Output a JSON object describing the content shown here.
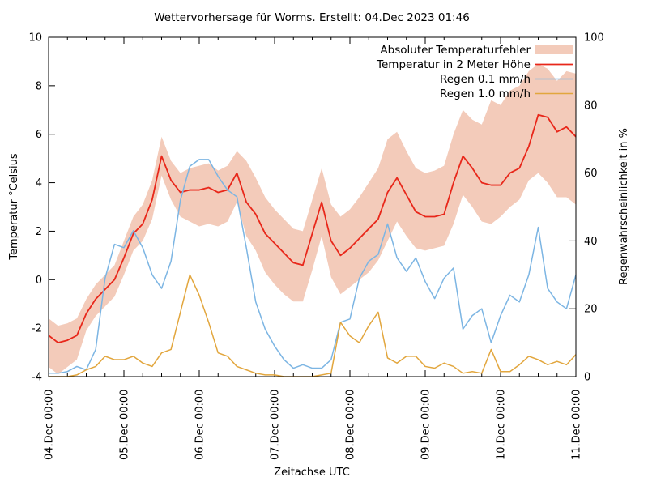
{
  "page": {
    "background": "#ffffff"
  },
  "chart_data": {
    "type": "line",
    "title": "Wettervorhersage für Worms. Erstellt: 04.Dec 2023 01:46",
    "xlabel": "Zeitachse UTC",
    "ylabel_left": "Temperatur °Celsius",
    "ylabel_right": "Regenwahrscheinlichkeit in %",
    "grid": "off",
    "legend_position": "top-right-inside",
    "y_left": {
      "min": -4,
      "max": 10,
      "ticks": [
        -4,
        -2,
        0,
        2,
        4,
        6,
        8,
        10
      ]
    },
    "y_right": {
      "min": 0,
      "max": 100,
      "ticks": [
        0,
        20,
        40,
        60,
        80,
        100
      ]
    },
    "x_axis": {
      "min_hours": 0,
      "max_hours": 168,
      "major_tick_hours": [
        0,
        24,
        48,
        72,
        96,
        120,
        144,
        168
      ],
      "major_tick_labels": [
        "04.Dec 00:00",
        "05.Dec 00:00",
        "06.Dec 00:00",
        "07.Dec 00:00",
        "08.Dec 00:00",
        "09.Dec 00:00",
        "10.Dec 00:00",
        "11.Dec 00:00"
      ],
      "minor_tick_step_hours": 6
    },
    "hours": [
      0,
      3,
      6,
      9,
      12,
      15,
      18,
      21,
      24,
      27,
      30,
      33,
      36,
      39,
      42,
      45,
      48,
      51,
      54,
      57,
      60,
      63,
      66,
      69,
      72,
      75,
      78,
      81,
      84,
      87,
      90,
      93,
      96,
      99,
      102,
      105,
      108,
      111,
      114,
      117,
      120,
      123,
      126,
      129,
      132,
      135,
      138,
      141,
      144,
      147,
      150,
      153,
      156,
      159,
      162,
      165,
      168
    ],
    "series": [
      {
        "name": "Absoluter Temperaturfehler",
        "type": "band",
        "axis": "left",
        "color": "#f3cbba",
        "upper": [
          -1.6,
          -1.9,
          -1.8,
          -1.6,
          -0.8,
          -0.2,
          0.2,
          0.6,
          1.6,
          2.6,
          3.1,
          4.1,
          5.9,
          4.9,
          4.4,
          4.6,
          4.7,
          4.8,
          4.5,
          4.7,
          5.3,
          4.9,
          4.2,
          3.4,
          2.9,
          2.5,
          2.1,
          2.0,
          3.3,
          4.6,
          3.1,
          2.6,
          2.9,
          3.4,
          4.0,
          4.6,
          5.8,
          6.1,
          5.3,
          4.6,
          4.4,
          4.5,
          4.7,
          6.0,
          7.0,
          6.6,
          6.4,
          7.4,
          7.2,
          7.8,
          8.0,
          8.6,
          8.9,
          8.7,
          8.2,
          8.6,
          8.5
        ],
        "lower": [
          -3.6,
          -3.9,
          -3.6,
          -3.3,
          -2.1,
          -1.5,
          -1.1,
          -0.7,
          0.2,
          1.2,
          1.6,
          2.5,
          4.3,
          3.3,
          2.6,
          2.4,
          2.2,
          2.3,
          2.2,
          2.4,
          3.2,
          1.8,
          1.2,
          0.3,
          -0.2,
          -0.6,
          -0.9,
          -0.9,
          0.4,
          1.8,
          0.1,
          -0.6,
          -0.3,
          0.0,
          0.3,
          0.8,
          1.6,
          2.4,
          1.8,
          1.3,
          1.2,
          1.3,
          1.4,
          2.3,
          3.5,
          3.0,
          2.4,
          2.3,
          2.6,
          3.0,
          3.3,
          4.1,
          4.4,
          4.0,
          3.4,
          3.4,
          3.1
        ]
      },
      {
        "name": "Temperatur in 2 Meter Höhe",
        "type": "line",
        "axis": "left",
        "color": "#e8271a",
        "values": [
          -2.3,
          -2.6,
          -2.5,
          -2.3,
          -1.4,
          -0.8,
          -0.4,
          0.0,
          0.9,
          1.9,
          2.3,
          3.3,
          5.1,
          4.1,
          3.6,
          3.7,
          3.7,
          3.8,
          3.6,
          3.7,
          4.4,
          3.2,
          2.7,
          1.9,
          1.5,
          1.1,
          0.7,
          0.6,
          1.9,
          3.2,
          1.6,
          1.0,
          1.3,
          1.7,
          2.1,
          2.5,
          3.6,
          4.2,
          3.5,
          2.8,
          2.6,
          2.6,
          2.7,
          4.0,
          5.1,
          4.6,
          4.0,
          3.9,
          3.9,
          4.4,
          4.6,
          5.5,
          6.8,
          6.7,
          6.1,
          6.3,
          5.9
        ]
      },
      {
        "name": "Regen 0.1 mm/h",
        "type": "line",
        "axis": "right",
        "color": "#7cb5e3",
        "values": [
          1,
          1,
          1.5,
          3,
          2,
          8,
          29,
          39,
          38,
          43,
          38,
          30,
          26,
          34,
          52,
          62,
          64,
          64,
          59,
          55,
          53,
          38,
          22,
          14,
          9,
          5,
          2.5,
          3.5,
          2.5,
          2.5,
          5,
          16,
          17,
          29,
          34,
          36,
          45,
          35,
          31,
          35,
          28,
          23,
          29,
          32,
          14,
          18,
          20,
          10,
          18,
          24,
          22,
          30,
          44,
          26,
          22,
          20,
          30
        ]
      },
      {
        "name": "Regen 1.0 mm/h",
        "type": "line",
        "axis": "right",
        "color": "#e2a63d",
        "values": [
          0,
          0,
          0,
          0.5,
          2,
          3,
          6,
          5,
          5,
          6,
          4,
          3,
          7,
          8,
          19,
          30,
          24,
          16,
          7,
          6,
          3,
          2,
          1,
          0.5,
          0.5,
          0,
          0,
          0,
          0,
          0.5,
          1,
          16,
          12,
          10,
          15,
          19,
          5.5,
          4,
          6,
          6,
          3,
          2.5,
          4,
          3,
          1,
          1.5,
          1,
          8,
          1.5,
          1.5,
          3.5,
          6,
          5,
          3.5,
          4.5,
          3.5,
          6.5
        ]
      }
    ]
  }
}
